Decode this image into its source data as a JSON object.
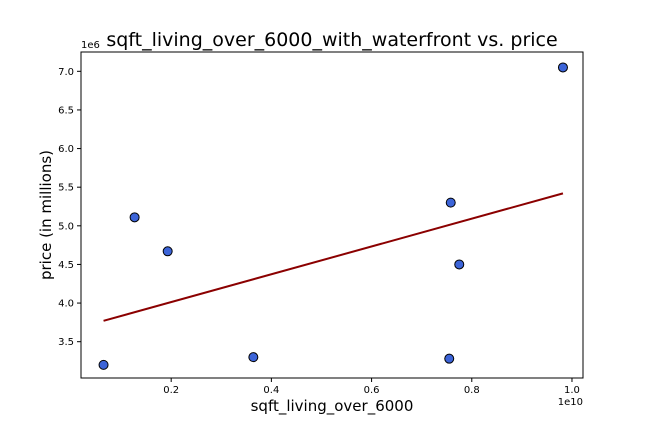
{
  "chart_data": {
    "type": "scatter",
    "title": "sqft_living_over_6000_with_waterfront vs. price",
    "xlabel": "sqft_living_over_6000",
    "ylabel": "price (in millions)",
    "x_offset_label": "1e10",
    "y_offset_label": "1e6",
    "xlim": [
      0.02,
      1.022
    ],
    "ylim": [
      3.03,
      7.25
    ],
    "x_ticks": [
      0.2,
      0.4,
      0.6,
      0.8,
      1.0
    ],
    "x_tick_labels": [
      "0.2",
      "0.4",
      "0.6",
      "0.8",
      "1.0"
    ],
    "y_ticks": [
      3.5,
      4.0,
      4.5,
      5.0,
      5.5,
      6.0,
      6.5,
      7.0
    ],
    "y_tick_labels": [
      "3.5",
      "4.0",
      "4.5",
      "5.0",
      "5.5",
      "6.0",
      "6.5",
      "7.0"
    ],
    "points": [
      {
        "x": 0.065,
        "y": 3.2
      },
      {
        "x": 0.127,
        "y": 5.11
      },
      {
        "x": 0.193,
        "y": 4.67
      },
      {
        "x": 0.364,
        "y": 3.3
      },
      {
        "x": 0.755,
        "y": 3.28
      },
      {
        "x": 0.758,
        "y": 5.3
      },
      {
        "x": 0.775,
        "y": 4.5
      },
      {
        "x": 0.982,
        "y": 7.05
      }
    ],
    "trendline": {
      "x": [
        0.065,
        0.982
      ],
      "y": [
        3.77,
        5.42
      ]
    },
    "point_color": "#3c64d8",
    "point_edge_color": "#000000",
    "trendline_color": "#8b0000",
    "grid": false,
    "legend": "none"
  }
}
